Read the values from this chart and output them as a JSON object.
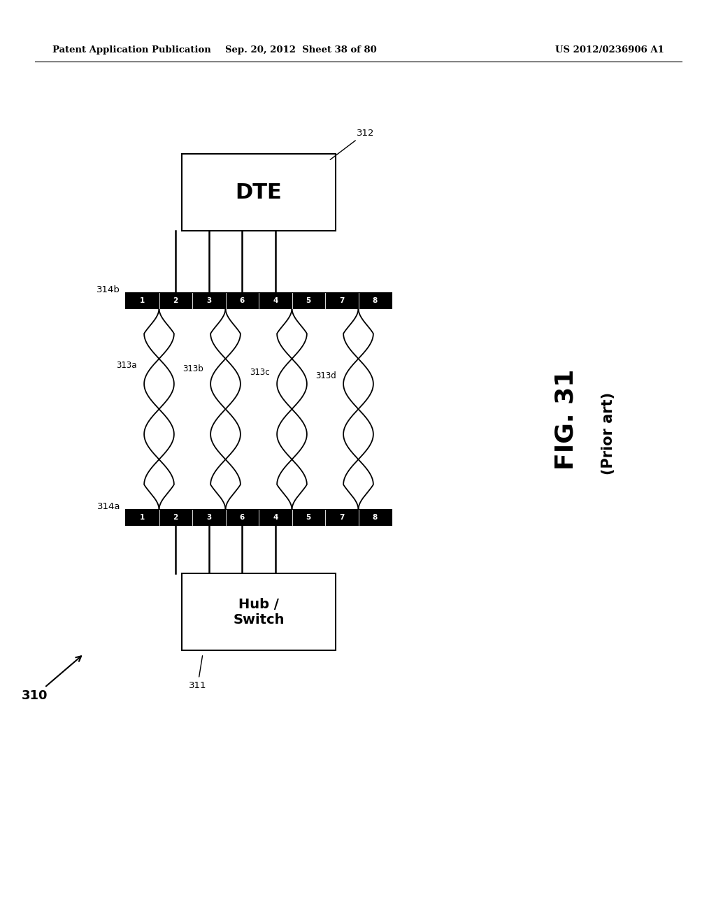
{
  "bg_color": "#ffffff",
  "header_left": "Patent Application Publication",
  "header_mid": "Sep. 20, 2012  Sheet 38 of 80",
  "header_right": "US 2012/0236906 A1",
  "fig_label": "FIG. 31",
  "fig_sublabel": "(Prior art)",
  "diagram_label": "310",
  "dte_label": "DTE",
  "hub_label": "Hub /\nSwitch",
  "connector_top_label": "314b",
  "connector_bot_label": "314a",
  "connector_ports": [
    "1",
    "2",
    "3",
    "6",
    "4",
    "5",
    "7",
    "8"
  ],
  "cable_labels": [
    "313a",
    "313b",
    "313c",
    "313d"
  ],
  "ref_312": "312",
  "ref_311": "311"
}
